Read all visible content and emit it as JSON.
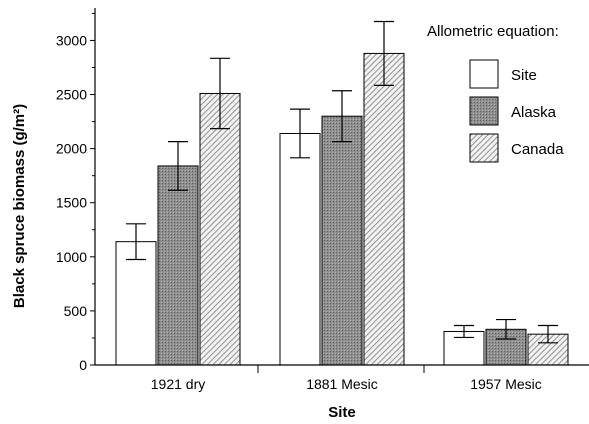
{
  "chart_data": {
    "type": "bar",
    "xlabel": "Site",
    "ylabel": "Black spruce biomass (g/m²)",
    "ylim": [
      0,
      3300
    ],
    "yticks": [
      0,
      500,
      1000,
      1500,
      2000,
      2500,
      3000
    ],
    "grid": false,
    "legend_title": "Allometric equation:",
    "legend_position": "top-right",
    "categories": [
      "1921 dry",
      "1881 Mesic",
      "1957 Mesic"
    ],
    "series": [
      {
        "name": "Site",
        "pattern": "open",
        "values": [
          1140,
          2140,
          310
        ],
        "errors": [
          165,
          225,
          55
        ]
      },
      {
        "name": "Alaska",
        "pattern": "stipple",
        "values": [
          1840,
          2300,
          330
        ],
        "errors": [
          225,
          235,
          90
        ]
      },
      {
        "name": "Canada",
        "pattern": "hatch",
        "values": [
          2510,
          2880,
          285
        ],
        "errors": [
          325,
          295,
          80
        ]
      }
    ]
  }
}
